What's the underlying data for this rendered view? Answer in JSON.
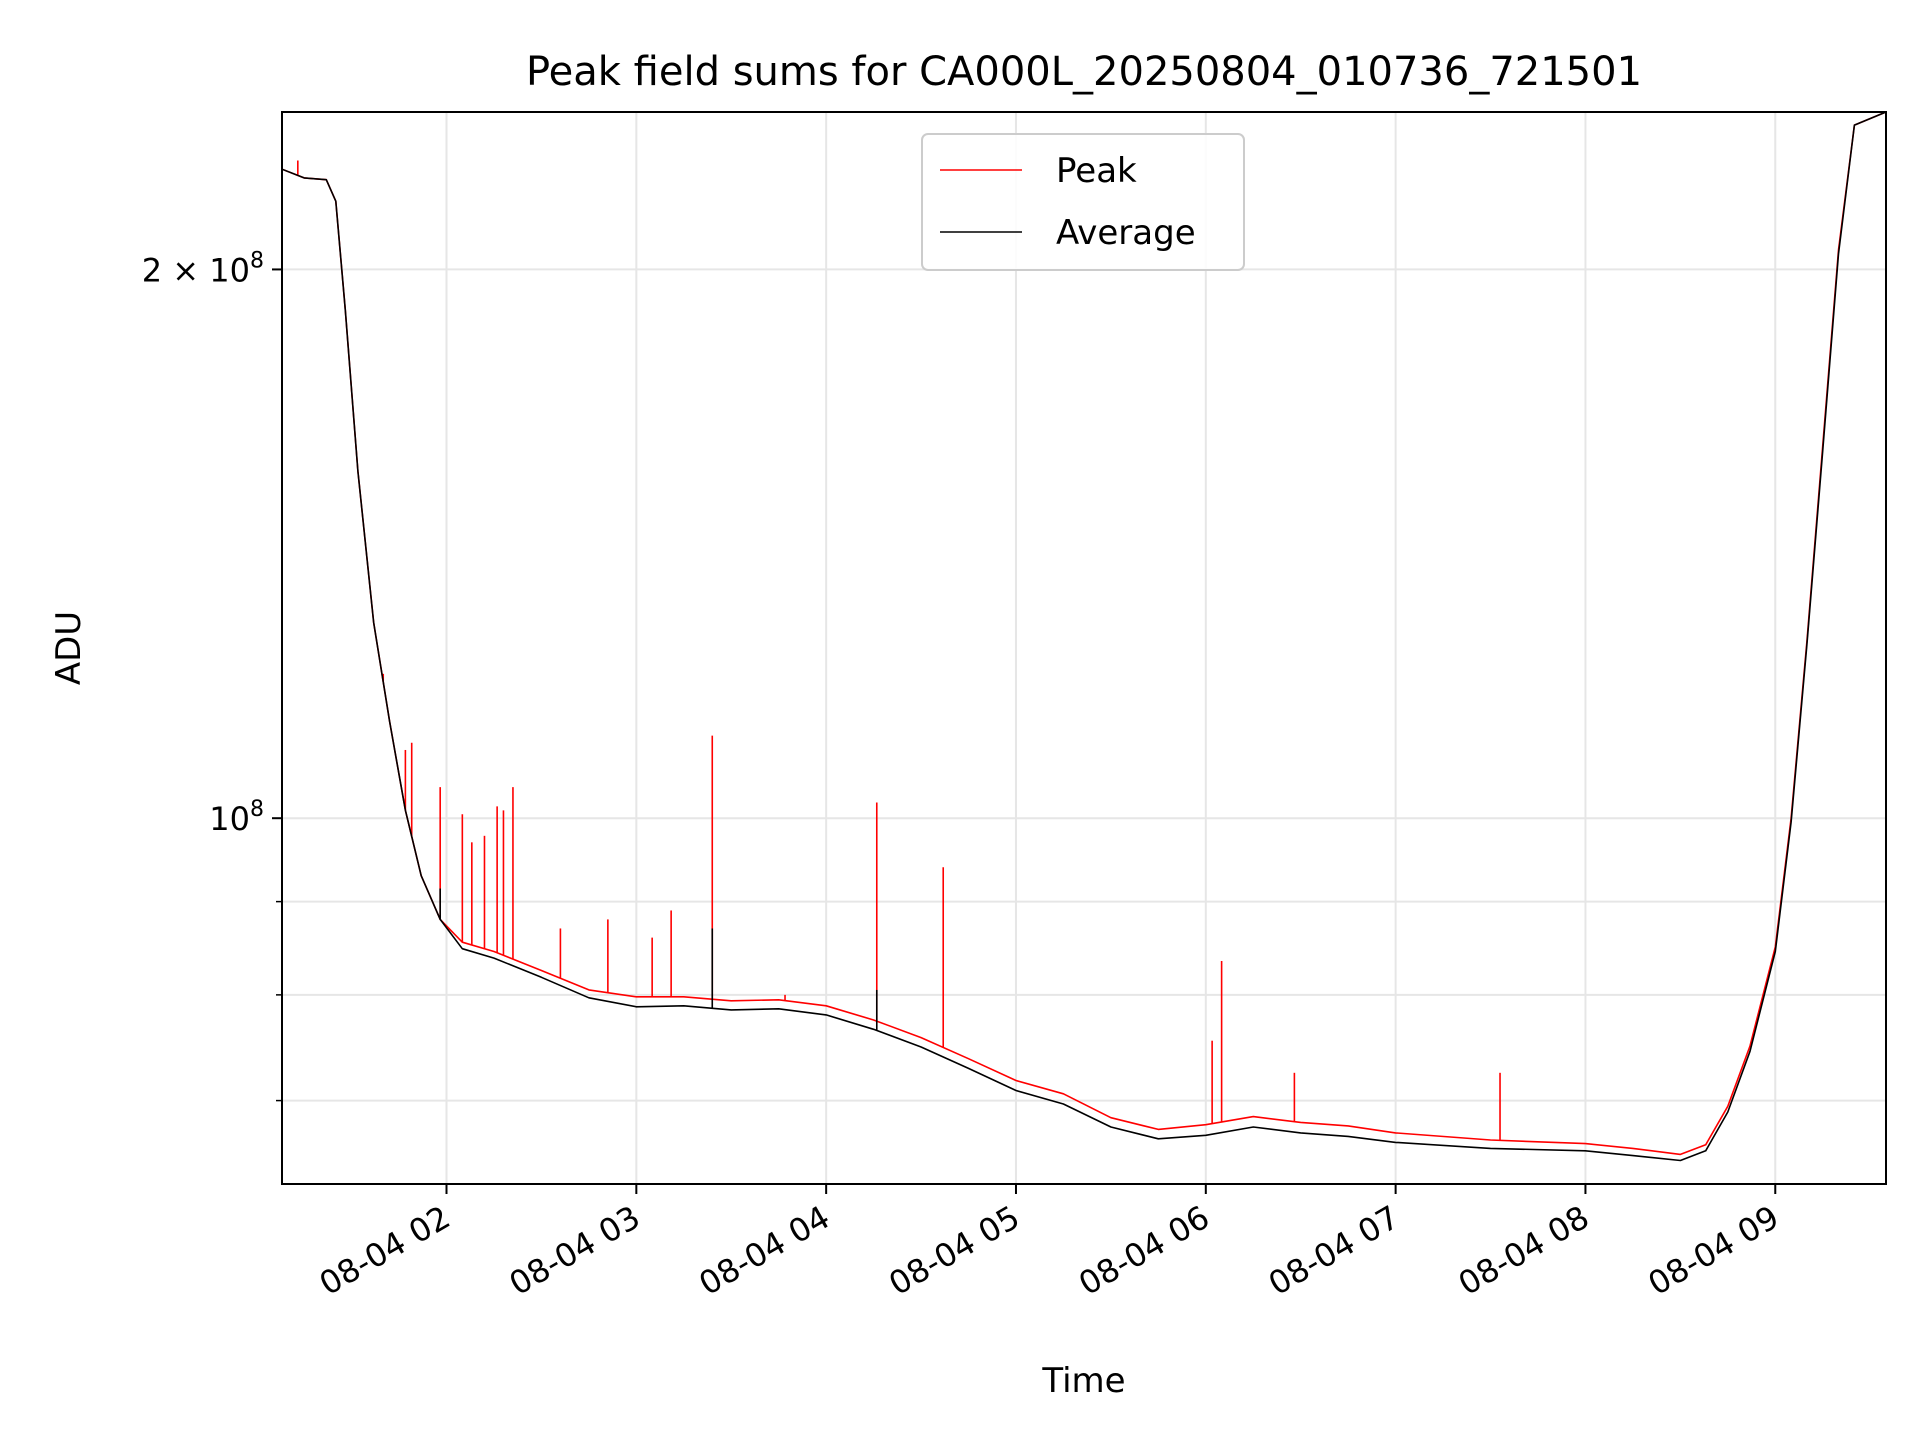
{
  "chart_data": {
    "type": "line",
    "title": "Peak field sums for CA000L_20250804_010736_721501",
    "xlabel": "Time",
    "ylabel": "ADU",
    "x_type": "time",
    "xlim": [
      "2025-08-04 01:08",
      "2025-08-04 09:35"
    ],
    "ylim": [
      63000000,
      244000000
    ],
    "y_scale": "log",
    "grid": true,
    "legend_position": "top-center",
    "x_ticks": [
      {
        "value": "2025-08-04 02:00",
        "label": "08-04 02"
      },
      {
        "value": "2025-08-04 03:00",
        "label": "08-04 03"
      },
      {
        "value": "2025-08-04 04:00",
        "label": "08-04 04"
      },
      {
        "value": "2025-08-04 05:00",
        "label": "08-04 05"
      },
      {
        "value": "2025-08-04 06:00",
        "label": "08-04 06"
      },
      {
        "value": "2025-08-04 07:00",
        "label": "08-04 07"
      },
      {
        "value": "2025-08-04 08:00",
        "label": "08-04 08"
      },
      {
        "value": "2025-08-04 09:00",
        "label": "08-04 09"
      }
    ],
    "y_major_ticks": [
      {
        "value": 100000000,
        "base": "10",
        "exp": "8",
        "coef": ""
      },
      {
        "value": 200000000,
        "base": "10",
        "exp": "8",
        "coef": "2 × "
      }
    ],
    "y_minor_ticks": [
      70000000,
      80000000,
      90000000
    ],
    "series": [
      {
        "name": "Peak",
        "color": "#ff0000",
        "points": [
          [
            "2025-08-04 01:08",
            227000000
          ],
          [
            "2025-08-04 01:15",
            224500000
          ],
          [
            "2025-08-04 01:22",
            224000000
          ],
          [
            "2025-08-04 01:25",
            218000000
          ],
          [
            "2025-08-04 01:28",
            190000000
          ],
          [
            "2025-08-04 01:32",
            155000000
          ],
          [
            "2025-08-04 01:37",
            128000000
          ],
          [
            "2025-08-04 01:42",
            113000000
          ],
          [
            "2025-08-04 01:47",
            101000000
          ],
          [
            "2025-08-04 01:52",
            93000000
          ],
          [
            "2025-08-04 01:58",
            88000000
          ],
          [
            "2025-08-04 02:05",
            85500000
          ],
          [
            "2025-08-04 02:15",
            84500000
          ],
          [
            "2025-08-04 02:30",
            82500000
          ],
          [
            "2025-08-04 02:45",
            80500000
          ],
          [
            "2025-08-04 03:00",
            79800000
          ],
          [
            "2025-08-04 03:15",
            79800000
          ],
          [
            "2025-08-04 03:30",
            79400000
          ],
          [
            "2025-08-04 03:45",
            79500000
          ],
          [
            "2025-08-04 04:00",
            78900000
          ],
          [
            "2025-08-04 04:15",
            77500000
          ],
          [
            "2025-08-04 04:30",
            75800000
          ],
          [
            "2025-08-04 04:45",
            73800000
          ],
          [
            "2025-08-04 05:00",
            71800000
          ],
          [
            "2025-08-04 05:15",
            70600000
          ],
          [
            "2025-08-04 05:30",
            68500000
          ],
          [
            "2025-08-04 05:45",
            67500000
          ],
          [
            "2025-08-04 06:00",
            67900000
          ],
          [
            "2025-08-04 06:15",
            68600000
          ],
          [
            "2025-08-04 06:30",
            68100000
          ],
          [
            "2025-08-04 06:45",
            67800000
          ],
          [
            "2025-08-04 07:00",
            67200000
          ],
          [
            "2025-08-04 07:30",
            66600000
          ],
          [
            "2025-08-04 08:00",
            66300000
          ],
          [
            "2025-08-04 08:15",
            65900000
          ],
          [
            "2025-08-04 08:30",
            65400000
          ],
          [
            "2025-08-04 08:38",
            66200000
          ],
          [
            "2025-08-04 08:45",
            69500000
          ],
          [
            "2025-08-04 08:52",
            75000000
          ],
          [
            "2025-08-04 09:00",
            85000000
          ],
          [
            "2025-08-04 09:05",
            100000000
          ],
          [
            "2025-08-04 09:10",
            125000000
          ],
          [
            "2025-08-04 09:15",
            160000000
          ],
          [
            "2025-08-04 09:20",
            205000000
          ],
          [
            "2025-08-04 09:25",
            240000000
          ],
          [
            "2025-08-04 09:35",
            244000000
          ]
        ],
        "spikes": [
          [
            "2025-08-04 01:13",
            229500000
          ],
          [
            "2025-08-04 01:40",
            120000000
          ],
          [
            "2025-08-04 01:47",
            109000000
          ],
          [
            "2025-08-04 01:49",
            110000000
          ],
          [
            "2025-08-04 01:58",
            104000000
          ],
          [
            "2025-08-04 02:05",
            100500000
          ],
          [
            "2025-08-04 02:08",
            97000000
          ],
          [
            "2025-08-04 02:12",
            97800000
          ],
          [
            "2025-08-04 02:16",
            101500000
          ],
          [
            "2025-08-04 02:18",
            101000000
          ],
          [
            "2025-08-04 02:21",
            104000000
          ],
          [
            "2025-08-04 02:36",
            87000000
          ],
          [
            "2025-08-04 02:51",
            88000000
          ],
          [
            "2025-08-04 03:05",
            86000000
          ],
          [
            "2025-08-04 03:11",
            89000000
          ],
          [
            "2025-08-04 03:24",
            111000000
          ],
          [
            "2025-08-04 03:47",
            80000000
          ],
          [
            "2025-08-04 04:16",
            102000000
          ],
          [
            "2025-08-04 04:37",
            94000000
          ],
          [
            "2025-08-04 06:02",
            75500000
          ],
          [
            "2025-08-04 06:05",
            83500000
          ],
          [
            "2025-08-04 06:28",
            72500000
          ],
          [
            "2025-08-04 07:33",
            72500000
          ]
        ]
      },
      {
        "name": "Average",
        "color": "#000000",
        "points": [
          [
            "2025-08-04 01:08",
            227000000
          ],
          [
            "2025-08-04 01:15",
            224500000
          ],
          [
            "2025-08-04 01:22",
            224000000
          ],
          [
            "2025-08-04 01:25",
            218000000
          ],
          [
            "2025-08-04 01:28",
            190000000
          ],
          [
            "2025-08-04 01:32",
            155000000
          ],
          [
            "2025-08-04 01:37",
            128000000
          ],
          [
            "2025-08-04 01:42",
            113000000
          ],
          [
            "2025-08-04 01:47",
            101000000
          ],
          [
            "2025-08-04 01:52",
            93000000
          ],
          [
            "2025-08-04 01:58",
            88000000
          ],
          [
            "2025-08-04 02:05",
            84800000
          ],
          [
            "2025-08-04 02:15",
            83800000
          ],
          [
            "2025-08-04 02:30",
            81800000
          ],
          [
            "2025-08-04 02:45",
            79700000
          ],
          [
            "2025-08-04 03:00",
            78800000
          ],
          [
            "2025-08-04 03:15",
            78900000
          ],
          [
            "2025-08-04 03:30",
            78500000
          ],
          [
            "2025-08-04 03:45",
            78600000
          ],
          [
            "2025-08-04 04:00",
            78000000
          ],
          [
            "2025-08-04 04:15",
            76600000
          ],
          [
            "2025-08-04 04:30",
            74900000
          ],
          [
            "2025-08-04 04:45",
            72900000
          ],
          [
            "2025-08-04 05:00",
            70900000
          ],
          [
            "2025-08-04 05:15",
            69700000
          ],
          [
            "2025-08-04 05:30",
            67700000
          ],
          [
            "2025-08-04 05:45",
            66700000
          ],
          [
            "2025-08-04 06:00",
            67000000
          ],
          [
            "2025-08-04 06:15",
            67700000
          ],
          [
            "2025-08-04 06:30",
            67200000
          ],
          [
            "2025-08-04 06:45",
            66900000
          ],
          [
            "2025-08-04 07:00",
            66400000
          ],
          [
            "2025-08-04 07:30",
            65900000
          ],
          [
            "2025-08-04 08:00",
            65700000
          ],
          [
            "2025-08-04 08:15",
            65300000
          ],
          [
            "2025-08-04 08:30",
            64900000
          ],
          [
            "2025-08-04 08:38",
            65700000
          ],
          [
            "2025-08-04 08:45",
            69000000
          ],
          [
            "2025-08-04 08:52",
            74500000
          ],
          [
            "2025-08-04 09:00",
            84500000
          ],
          [
            "2025-08-04 09:05",
            99500000
          ],
          [
            "2025-08-04 09:10",
            124500000
          ],
          [
            "2025-08-04 09:15",
            159000000
          ],
          [
            "2025-08-04 09:20",
            204000000
          ],
          [
            "2025-08-04 09:25",
            240000000
          ],
          [
            "2025-08-04 09:35",
            244000000
          ]
        ],
        "spikes": [
          [
            "2025-08-04 01:58",
            91500000
          ],
          [
            "2025-08-04 03:24",
            87000000
          ],
          [
            "2025-08-04 04:16",
            80500000
          ]
        ]
      }
    ]
  }
}
